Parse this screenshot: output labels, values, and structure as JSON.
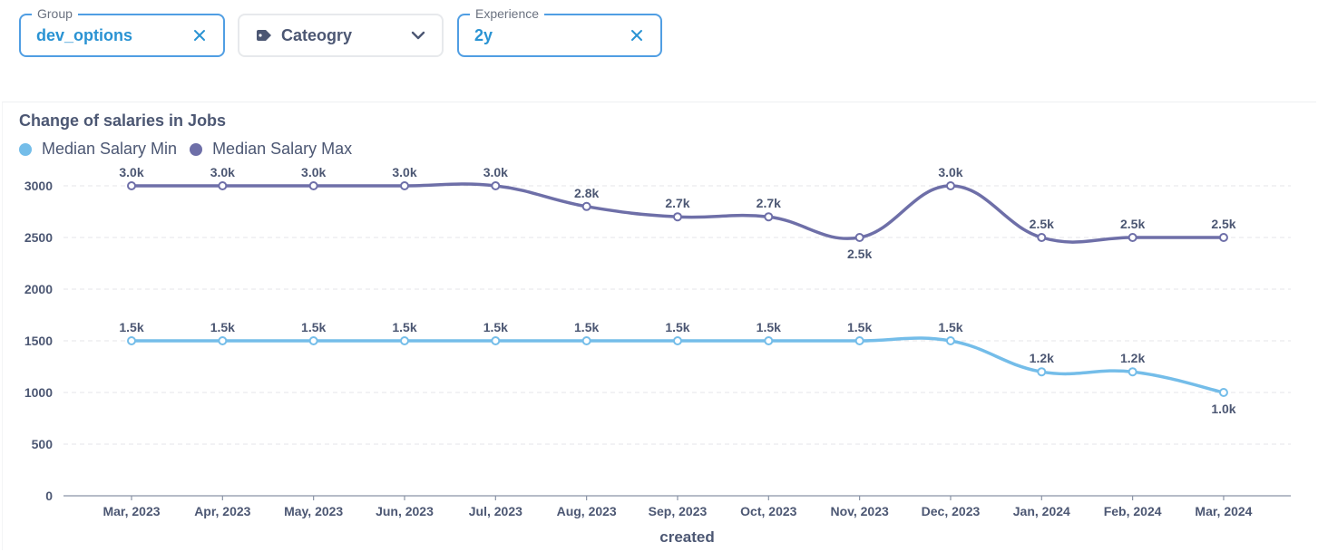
{
  "filters": {
    "group": {
      "legend": "Group",
      "value": "dev_options"
    },
    "category": {
      "placeholder": "Cateogry"
    },
    "experience": {
      "legend": "Experience",
      "value": "2y"
    }
  },
  "chart_data": {
    "type": "line",
    "title": "Change of salaries in Jobs",
    "xlabel": "created",
    "ylabel": "",
    "ylim": [
      0,
      3000
    ],
    "yticks": [
      "0",
      "500",
      "1000",
      "1500",
      "2000",
      "2500",
      "3000"
    ],
    "grid": true,
    "legend_position": "top-left",
    "categories": [
      "Mar, 2023",
      "Apr, 2023",
      "May, 2023",
      "Jun, 2023",
      "Jul, 2023",
      "Aug, 2023",
      "Sep, 2023",
      "Oct, 2023",
      "Nov, 2023",
      "Dec, 2023",
      "Jan, 2024",
      "Feb, 2024",
      "Mar, 2024"
    ],
    "series": [
      {
        "name": "Median Salary Min",
        "color": "#74bde9",
        "values": [
          1500,
          1500,
          1500,
          1500,
          1500,
          1500,
          1500,
          1500,
          1500,
          1500,
          1200,
          1200,
          1000
        ],
        "labels": [
          "1.5k",
          "1.5k",
          "1.5k",
          "1.5k",
          "1.5k",
          "1.5k",
          "1.5k",
          "1.5k",
          "1.5k",
          "1.5k",
          "1.2k",
          "1.2k",
          "1.0k"
        ],
        "label_below": [
          false,
          false,
          false,
          false,
          false,
          false,
          false,
          false,
          false,
          false,
          false,
          false,
          true
        ]
      },
      {
        "name": "Median Salary Max",
        "color": "#6e6fa8",
        "values": [
          3000,
          3000,
          3000,
          3000,
          3000,
          2800,
          2700,
          2700,
          2500,
          3000,
          2500,
          2500,
          2500
        ],
        "labels": [
          "3.0k",
          "3.0k",
          "3.0k",
          "3.0k",
          "3.0k",
          "2.8k",
          "2.7k",
          "2.7k",
          "2.5k",
          "3.0k",
          "2.5k",
          "2.5k",
          "2.5k"
        ],
        "label_below": [
          false,
          false,
          false,
          false,
          false,
          false,
          false,
          false,
          true,
          false,
          false,
          false,
          false
        ]
      }
    ]
  }
}
